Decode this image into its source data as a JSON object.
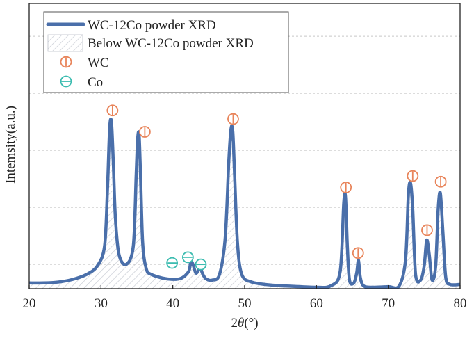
{
  "chart_data": {
    "type": "line",
    "xlabel_main": "2",
    "xlabel_theta": "θ",
    "xlabel_unit": "(°)",
    "ylabel": "Intemsity(a.u.)",
    "xlim": [
      20,
      80
    ],
    "ylim": [
      0,
      100
    ],
    "x_ticks": [
      "20",
      "30",
      "40",
      "50",
      "60",
      "70",
      "80"
    ],
    "y_grid": [
      8.5,
      28.5,
      48.5,
      68.5,
      88.5
    ],
    "grid": "horizontal-dashed",
    "legend_position": "top-left",
    "colors": {
      "line": "#4a6faa",
      "wc_marker": "#e8845a",
      "co_marker": "#3cbcb0",
      "hatch": "#c8ccd4",
      "grid": "#c8c8c8"
    },
    "legend": [
      {
        "label": "WC-12Co powder XRD",
        "kind": "line"
      },
      {
        "label": "Below WC-12Co powder XRD",
        "kind": "hatch"
      },
      {
        "label": "WC",
        "kind": "wc-marker"
      },
      {
        "label": "Co",
        "kind": "co-marker"
      }
    ],
    "series": [
      {
        "name": "WC-12Co powder XRD",
        "x": [
          20,
          22,
          24,
          26,
          28,
          29.5,
          30.5,
          30.9,
          31.2,
          31.45,
          31.7,
          32.0,
          32.5,
          33.5,
          34.5,
          34.9,
          35.1,
          35.3,
          35.5,
          35.8,
          36.3,
          37,
          39,
          41,
          42.2,
          42.5,
          42.8,
          43.2,
          43.6,
          43.85,
          44.1,
          44.6,
          45.5,
          46.5,
          47.3,
          47.8,
          48.1,
          48.35,
          48.6,
          49.0,
          49.6,
          51,
          54,
          57,
          60,
          62,
          63.3,
          63.8,
          64.05,
          64.3,
          64.6,
          65.2,
          65.6,
          65.85,
          66.1,
          66.6,
          68,
          70,
          71.5,
          72.4,
          72.8,
          73.1,
          73.4,
          73.8,
          74.5,
          75.0,
          75.35,
          75.7,
          76.1,
          76.6,
          76.95,
          77.25,
          77.6,
          78.0,
          78.6,
          80
        ],
        "y": [
          2.0,
          2.0,
          2.3,
          3.2,
          5.0,
          8.0,
          15.0,
          35.0,
          56.0,
          58.5,
          45.0,
          25.0,
          12.0,
          8.5,
          15.0,
          40.0,
          52.5,
          54.0,
          40.0,
          16.0,
          7.0,
          5.0,
          3.5,
          3.5,
          6.0,
          9.5,
          8.5,
          5.5,
          6.5,
          7.5,
          5.5,
          3.5,
          3.0,
          5.0,
          18.0,
          45.0,
          56.0,
          55.0,
          40.0,
          16.0,
          5.0,
          2.3,
          1.2,
          0.8,
          0.5,
          1.0,
          6.0,
          30.0,
          32.0,
          15.0,
          3.0,
          2.0,
          5.5,
          10.0,
          4.0,
          0.9,
          0.5,
          0.7,
          0.9,
          10.0,
          33.0,
          37.0,
          28.0,
          5.0,
          3.0,
          8.0,
          17.0,
          12.0,
          3.0,
          8.0,
          28.0,
          33.5,
          20.0,
          4.0,
          1.5,
          1.5
        ]
      }
    ],
    "wc_markers": [
      {
        "x": 31.6,
        "y": 62.5
      },
      {
        "x": 36.1,
        "y": 55.0
      },
      {
        "x": 48.4,
        "y": 59.5
      },
      {
        "x": 64.1,
        "y": 35.5
      },
      {
        "x": 65.8,
        "y": 12.5
      },
      {
        "x": 73.4,
        "y": 39.5
      },
      {
        "x": 75.4,
        "y": 20.5
      },
      {
        "x": 77.3,
        "y": 37.5
      }
    ],
    "co_markers": [
      {
        "x": 39.9,
        "y": 9.0
      },
      {
        "x": 42.1,
        "y": 11.0
      },
      {
        "x": 43.9,
        "y": 8.5
      }
    ]
  }
}
